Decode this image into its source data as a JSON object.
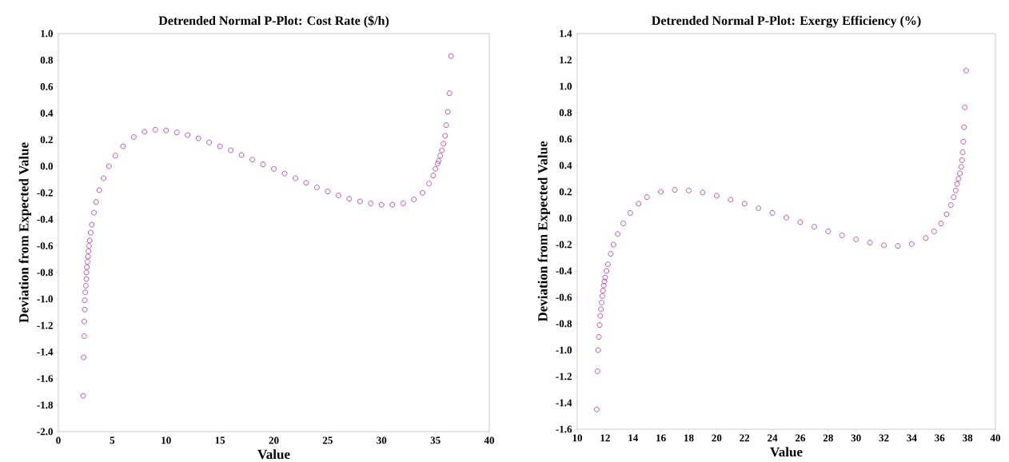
{
  "chart_data": [
    {
      "type": "scatter",
      "title": "Detrended Normal P-Plot: Cost Rate ($/h)",
      "xlabel": "Value",
      "ylabel": "Deviation from Expected Value",
      "marker": "circle",
      "grid": false,
      "xlim": [
        0,
        40
      ],
      "ylim": [
        -2.0,
        1.0
      ],
      "xticks": [
        0,
        5,
        10,
        15,
        20,
        25,
        30,
        35,
        40
      ],
      "yticks": [
        {
          "value": -2.0,
          "label": "-2.0"
        },
        {
          "value": -1.8,
          "label": "-1.8"
        },
        {
          "value": -1.6,
          "label": "-1.6"
        },
        {
          "value": -1.4,
          "label": "-1.4"
        },
        {
          "value": -1.2,
          "label": "-1.2"
        },
        {
          "value": -1.0,
          "label": "-1.0"
        },
        {
          "value": -0.8,
          "label": "-0.8"
        },
        {
          "value": -0.6,
          "label": "-0.6"
        },
        {
          "value": -0.4,
          "label": "-0.4"
        },
        {
          "value": -0.2,
          "label": "-0.2"
        },
        {
          "value": 0,
          "label": "0.0"
        },
        {
          "value": 0.2,
          "label": "0.2"
        },
        {
          "value": 0.4,
          "label": "0.4"
        },
        {
          "value": 0.6,
          "label": "0.6"
        },
        {
          "value": 0.8,
          "label": "0.8"
        },
        {
          "value": 1.0,
          "label": "1.0"
        }
      ],
      "series": [
        {
          "color": "#c03cb0",
          "x": [
            2.3,
            2.35,
            2.4,
            2.4,
            2.45,
            2.45,
            2.5,
            2.55,
            2.6,
            2.6,
            2.65,
            2.7,
            2.75,
            2.8,
            2.85,
            2.9,
            3.0,
            3.1,
            3.3,
            3.5,
            3.8,
            4.2,
            4.7,
            5.3,
            6,
            7,
            8,
            9,
            10,
            11,
            12,
            13,
            14,
            15,
            16,
            17,
            18,
            19,
            20,
            21,
            22,
            23,
            24,
            25,
            26,
            27,
            28,
            29,
            30,
            31,
            32,
            33,
            33.8,
            34.4,
            34.8,
            35.0,
            35.2,
            35.3,
            35.45,
            35.6,
            35.75,
            35.9,
            36.0,
            36.15,
            36.3,
            36.45
          ],
          "values": [
            -1.73,
            -1.44,
            -1.28,
            -1.17,
            -1.08,
            -1.01,
            -0.95,
            -0.9,
            -0.85,
            -0.8,
            -0.76,
            -0.72,
            -0.68,
            -0.64,
            -0.6,
            -0.56,
            -0.5,
            -0.44,
            -0.35,
            -0.27,
            -0.18,
            -0.09,
            0.0,
            0.08,
            0.15,
            0.22,
            0.26,
            0.275,
            0.27,
            0.255,
            0.235,
            0.21,
            0.18,
            0.15,
            0.12,
            0.085,
            0.05,
            0.015,
            -0.02,
            -0.055,
            -0.09,
            -0.125,
            -0.16,
            -0.19,
            -0.22,
            -0.245,
            -0.265,
            -0.28,
            -0.29,
            -0.29,
            -0.28,
            -0.25,
            -0.2,
            -0.13,
            -0.07,
            -0.02,
            0.02,
            0.04,
            0.08,
            0.12,
            0.17,
            0.23,
            0.31,
            0.41,
            0.55,
            0.83
          ]
        }
      ]
    },
    {
      "type": "scatter",
      "title": "Detrended Normal P-Plot: Exergy Efficiency (%)",
      "xlabel": "Value",
      "ylabel": "Deviation from Expected Value",
      "marker": "circle",
      "grid": false,
      "xlim": [
        10,
        40
      ],
      "ylim": [
        -1.6,
        1.4
      ],
      "xticks": [
        10,
        12,
        14,
        16,
        18,
        20,
        22,
        24,
        26,
        28,
        30,
        32,
        34,
        36,
        38,
        40
      ],
      "yticks": [
        {
          "value": -1.6,
          "label": "-1.6"
        },
        {
          "value": -1.4,
          "label": "-1.4"
        },
        {
          "value": -1.2,
          "label": "-1.2"
        },
        {
          "value": -1.0,
          "label": "-1.0"
        },
        {
          "value": -0.8,
          "label": "-0.8"
        },
        {
          "value": -0.6,
          "label": "-0.6"
        },
        {
          "value": -0.4,
          "label": "-0.4"
        },
        {
          "value": -0.2,
          "label": "-0.2"
        },
        {
          "value": 0,
          "label": "0.0"
        },
        {
          "value": 0.2,
          "label": "0.2"
        },
        {
          "value": 0.4,
          "label": "0.4"
        },
        {
          "value": 0.6,
          "label": "0.6"
        },
        {
          "value": 0.8,
          "label": "0.8"
        },
        {
          "value": 1.0,
          "label": "1.0"
        },
        {
          "value": 1.2,
          "label": "1.2"
        },
        {
          "value": 1.4,
          "label": "1.4"
        }
      ],
      "series": [
        {
          "color": "#c03cb0",
          "x": [
            11.4,
            11.45,
            11.5,
            11.55,
            11.6,
            11.65,
            11.7,
            11.75,
            11.8,
            11.85,
            11.9,
            11.95,
            12.0,
            12.1,
            12.2,
            12.4,
            12.6,
            12.9,
            13.3,
            13.8,
            14.4,
            15,
            16,
            17,
            18,
            19,
            20,
            21,
            22,
            23,
            24,
            25,
            26,
            27,
            28,
            29,
            30,
            31,
            32,
            33,
            34,
            35,
            35.6,
            36.1,
            36.5,
            36.8,
            37.0,
            37.15,
            37.25,
            37.35,
            37.45,
            37.55,
            37.6,
            37.65,
            37.7,
            37.75,
            37.8,
            37.9
          ],
          "values": [
            -1.45,
            -1.16,
            -1.0,
            -0.9,
            -0.81,
            -0.74,
            -0.69,
            -0.64,
            -0.59,
            -0.55,
            -0.51,
            -0.48,
            -0.45,
            -0.4,
            -0.35,
            -0.27,
            -0.2,
            -0.12,
            -0.04,
            0.04,
            0.11,
            0.16,
            0.2,
            0.215,
            0.21,
            0.195,
            0.17,
            0.14,
            0.11,
            0.075,
            0.04,
            0.005,
            -0.03,
            -0.065,
            -0.1,
            -0.13,
            -0.16,
            -0.185,
            -0.205,
            -0.21,
            -0.195,
            -0.15,
            -0.1,
            -0.04,
            0.03,
            0.1,
            0.16,
            0.21,
            0.26,
            0.3,
            0.34,
            0.39,
            0.44,
            0.5,
            0.58,
            0.69,
            0.84,
            1.12
          ]
        }
      ]
    }
  ]
}
